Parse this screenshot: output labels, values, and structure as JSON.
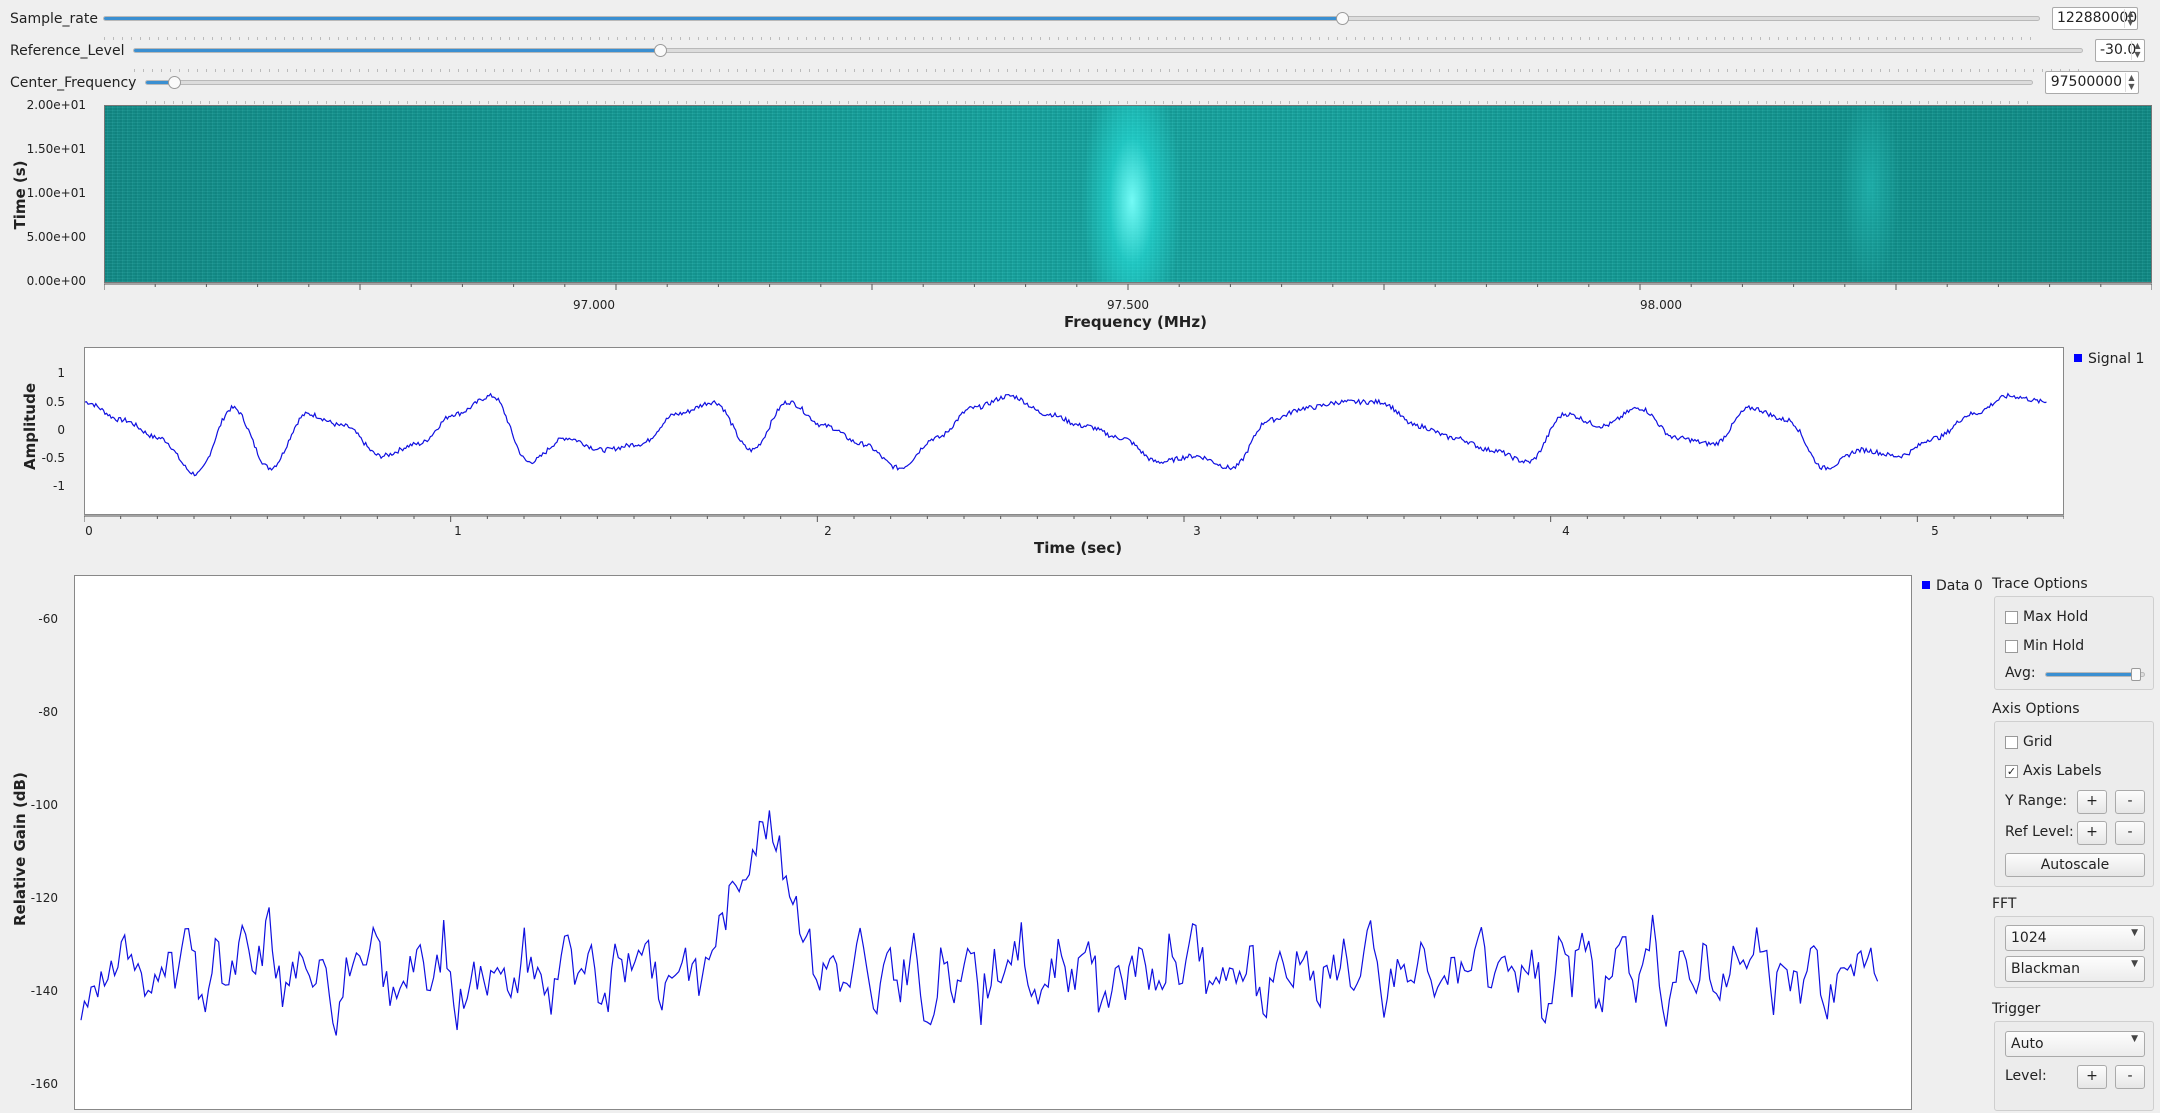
{
  "controls": {
    "sample_rate": {
      "label": "Sample_rate",
      "value": "122880000",
      "level": 0.64
    },
    "reference_level": {
      "label": "Reference_Level",
      "value": "-30.0",
      "level": 0.27
    },
    "center_frequency": {
      "label": "Center_Frequency",
      "value": "97500000",
      "level": 0.015
    }
  },
  "waterfall": {
    "ylabel": "Time (s)",
    "xlabel": "Frequency (MHz)",
    "yticks": [
      "2.00e+01",
      "1.50e+01",
      "1.00e+01",
      "5.00e+00",
      "0.00e+00"
    ],
    "xticks": [
      "97.000",
      "97.500",
      "98.000"
    ]
  },
  "time_plot": {
    "ylabel": "Amplitude",
    "xlabel": "Time (sec)",
    "yticks": [
      "1",
      "0.5",
      "0",
      "-0.5",
      "-1"
    ],
    "xticks": [
      "0",
      "1",
      "2",
      "3",
      "4",
      "5"
    ],
    "legend": "Signal 1"
  },
  "freq_plot": {
    "ylabel": "Relative Gain (dB)",
    "yticks": [
      "-60",
      "-80",
      "-100",
      "-120",
      "-140",
      "-160"
    ],
    "legend": "Data 0"
  },
  "panel": {
    "trace_options_title": "Trace Options",
    "max_hold": {
      "label": "Max Hold",
      "checked": false
    },
    "min_hold": {
      "label": "Min Hold",
      "checked": false
    },
    "avg_label": "Avg:",
    "avg_level": 0.93,
    "axis_options_title": "Axis Options",
    "grid": {
      "label": "Grid",
      "checked": false
    },
    "axis_labels": {
      "label": "Axis Labels",
      "checked": true,
      "mark": "✓"
    },
    "y_range_label": "Y Range:",
    "ref_level_label": "Ref Level:",
    "plus": "+",
    "minus": "-",
    "autoscale_label": "Autoscale",
    "fft_title": "FFT",
    "fft_size": "1024",
    "window": "Blackman",
    "trigger_title": "Trigger",
    "trigger_mode": "Auto",
    "trigger_level_label": "Level:"
  },
  "chart_data": [
    {
      "type": "heatmap",
      "xlabel": "Frequency (MHz)",
      "ylabel": "Time (s)",
      "xticks": [
        "97.000",
        "97.500",
        "98.000"
      ],
      "yticks": [
        "2.00e+01",
        "1.50e+01",
        "1.00e+01",
        "5.00e+00",
        "0.00e+00"
      ],
      "xlim": [
        96.54,
        98.46
      ],
      "ylim": [
        0,
        20
      ],
      "peak_frequency": 97.5
    },
    {
      "type": "line",
      "xlabel": "Time (sec)",
      "ylabel": "Amplitude",
      "xlim": [
        0,
        5.35
      ],
      "ylim": [
        -1.4,
        1.4
      ],
      "series": [
        {
          "name": "Signal 1",
          "x": [
            0,
            0.1,
            0.2,
            0.3,
            0.4,
            0.5,
            0.6,
            0.7,
            0.8,
            0.9,
            1.0,
            1.1,
            1.2,
            1.3,
            1.4,
            1.5,
            1.6,
            1.7,
            1.8,
            1.9,
            2.0,
            2.1,
            2.2,
            2.3,
            2.4,
            2.5,
            2.6,
            2.7,
            2.8,
            2.9,
            3.0,
            3.1,
            3.2,
            3.3,
            3.4,
            3.5,
            3.6,
            3.7,
            3.8,
            3.9,
            4.0,
            4.1,
            4.2,
            4.3,
            4.4,
            4.5,
            4.6,
            4.7,
            4.8,
            4.9,
            5.0,
            5.1,
            5.2,
            5.3
          ],
          "values": [
            0.5,
            0.2,
            -0.1,
            -0.7,
            0.4,
            -0.6,
            0.3,
            0.1,
            -0.4,
            -0.2,
            0.3,
            0.6,
            -0.5,
            -0.1,
            -0.3,
            -0.2,
            0.3,
            0.5,
            -0.3,
            0.5,
            0.1,
            -0.2,
            -0.6,
            -0.1,
            0.4,
            0.6,
            0.3,
            0.1,
            -0.1,
            -0.5,
            -0.4,
            -0.6,
            0.2,
            0.4,
            0.5,
            0.5,
            0.1,
            -0.1,
            -0.3,
            -0.5,
            0.3,
            0.1,
            0.4,
            -0.1,
            -0.2,
            0.4,
            0.2,
            -0.6,
            -0.3,
            -0.4,
            -0.1,
            0.3,
            0.6,
            0.5
          ]
        }
      ]
    },
    {
      "type": "line",
      "xlabel": "",
      "ylabel": "Relative Gain (dB)",
      "ylim": [
        -165,
        -50
      ],
      "series": [
        {
          "name": "Data 0",
          "values": [
            -145,
            -135,
            -140,
            -128,
            -133,
            -142,
            -130,
            -137,
            -126,
            -144,
            -131,
            -139,
            -128,
            -136,
            -124,
            -141,
            -133,
            -138,
            -129,
            -146,
            -132,
            -137,
            -127,
            -142,
            -135,
            -131,
            -140,
            -128,
            -145,
            -134,
            -138,
            -130,
            -143,
            -129,
            -136,
            -141,
            -127,
            -139,
            -133,
            -144,
            -130,
            -137,
            -126,
            -141,
            -135,
            -131,
            -138,
            -129,
            -122,
            -115,
            -108,
            -103,
            -110,
            -118,
            -127,
            -137,
            -131,
            -140,
            -128,
            -145,
            -133,
            -138,
            -129,
            -150,
            -134,
            -139,
            -127,
            -142,
            -132,
            -137,
            -128,
            -143,
            -135,
            -130,
            -140,
            -126,
            -145,
            -133,
            -138,
            -129,
            -142,
            -131,
            -136,
            -127,
            -141,
            -134,
            -139,
            -130,
            -144,
            -132,
            -137,
            -128,
            -141,
            -135,
            -130,
            -139,
            -127,
            -143,
            -133,
            -138,
            -129,
            -142,
            -131,
            -136,
            -126,
            -141,
            -134,
            -139,
            -130,
            -145,
            -132,
            -137,
            -128,
            -142,
            -135,
            -131,
            -140,
            -127,
            -143,
            -133,
            -138,
            -129,
            -142,
            -131,
            -136,
            -128,
            -141,
            -134,
            -139,
            -130,
            -144,
            -132,
            -137,
            -129,
            -141
          ]
        }
      ]
    }
  ]
}
